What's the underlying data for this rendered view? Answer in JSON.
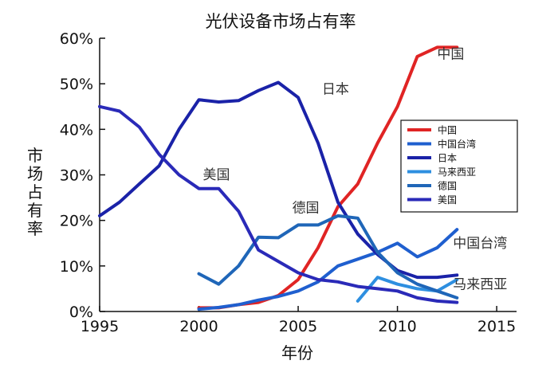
{
  "chart_data": {
    "type": "line",
    "title": "光伏设备市场占有率",
    "xlabel": "年份",
    "ylabel": "市场占有率",
    "xlim": [
      1995,
      2016
    ],
    "ylim": [
      0,
      60
    ],
    "xticks": [
      1995,
      2000,
      2005,
      2010,
      2015
    ],
    "yticks": [
      0,
      10,
      20,
      30,
      40,
      50,
      60
    ],
    "ytick_labels": [
      "0%",
      "10%",
      "20%",
      "30%",
      "40%",
      "50%",
      "60%"
    ],
    "grid": false,
    "legend_position": "right",
    "series": [
      {
        "name": "中国",
        "color": "#e02424",
        "points": [
          [
            2000,
            0.8
          ],
          [
            2001,
            0.8
          ],
          [
            2002,
            1.5
          ],
          [
            2003,
            2.0
          ],
          [
            2004,
            3.5
          ],
          [
            2005,
            7.0
          ],
          [
            2006,
            14.0
          ],
          [
            2007,
            23.0
          ],
          [
            2008,
            28.0
          ],
          [
            2009,
            37.0
          ],
          [
            2010,
            45.0
          ],
          [
            2011,
            56.0
          ],
          [
            2012,
            58.0
          ],
          [
            2013,
            58.0
          ]
        ]
      },
      {
        "name": "中国台湾",
        "color": "#1f5fcf",
        "points": [
          [
            2000,
            0.5
          ],
          [
            2001,
            0.9
          ],
          [
            2002,
            1.5
          ],
          [
            2003,
            2.5
          ],
          [
            2004,
            3.3
          ],
          [
            2005,
            4.5
          ],
          [
            2006,
            6.5
          ],
          [
            2007,
            10.0
          ],
          [
            2008,
            11.5
          ],
          [
            2009,
            13.0
          ],
          [
            2010,
            15.0
          ],
          [
            2011,
            12.0
          ],
          [
            2012,
            14.0
          ],
          [
            2013,
            18.0
          ]
        ]
      },
      {
        "name": "日本",
        "color": "#1a22a8",
        "points": [
          [
            1995,
            21.0
          ],
          [
            1996,
            24.0
          ],
          [
            1997,
            28.0
          ],
          [
            1998,
            32.0
          ],
          [
            1999,
            40.0
          ],
          [
            2000,
            46.5
          ],
          [
            2001,
            46.0
          ],
          [
            2002,
            46.3
          ],
          [
            2003,
            48.5
          ],
          [
            2004,
            50.3
          ],
          [
            2005,
            47.0
          ],
          [
            2006,
            37.0
          ],
          [
            2007,
            24.0
          ],
          [
            2008,
            17.0
          ],
          [
            2009,
            12.5
          ],
          [
            2010,
            9.0
          ],
          [
            2011,
            7.5
          ],
          [
            2012,
            7.5
          ],
          [
            2013,
            8.0
          ]
        ]
      },
      {
        "name": "马来西亚",
        "color": "#2e8fe0",
        "points": [
          [
            2008,
            2.3
          ],
          [
            2009,
            7.5
          ],
          [
            2010,
            6.0
          ],
          [
            2011,
            5.0
          ],
          [
            2012,
            4.5
          ],
          [
            2013,
            7.0
          ]
        ]
      },
      {
        "name": "德国",
        "color": "#1f66b8",
        "points": [
          [
            2000,
            8.3
          ],
          [
            2001,
            6.0
          ],
          [
            2002,
            10.0
          ],
          [
            2003,
            16.3
          ],
          [
            2004,
            16.2
          ],
          [
            2005,
            19.0
          ],
          [
            2006,
            19.0
          ],
          [
            2007,
            21.0
          ],
          [
            2008,
            20.5
          ],
          [
            2009,
            13.0
          ],
          [
            2010,
            8.5
          ],
          [
            2011,
            6.0
          ],
          [
            2012,
            4.5
          ],
          [
            2013,
            3.0
          ]
        ]
      },
      {
        "name": "美国",
        "color": "#2a2ab8",
        "points": [
          [
            1995,
            45.0
          ],
          [
            1996,
            44.0
          ],
          [
            1997,
            40.5
          ],
          [
            1998,
            34.5
          ],
          [
            1999,
            30.0
          ],
          [
            2000,
            27.0
          ],
          [
            2001,
            27.0
          ],
          [
            2002,
            22.0
          ],
          [
            2003,
            13.5
          ],
          [
            2004,
            11.0
          ],
          [
            2005,
            8.5
          ],
          [
            2006,
            7.0
          ],
          [
            2007,
            6.5
          ],
          [
            2008,
            5.5
          ],
          [
            2009,
            5.0
          ],
          [
            2010,
            4.5
          ],
          [
            2011,
            3.0
          ],
          [
            2012,
            2.3
          ],
          [
            2013,
            2.0
          ]
        ]
      }
    ],
    "annotations": [
      {
        "text": "中国",
        "x": 2012.0,
        "y": 55.5
      },
      {
        "text": "日本",
        "x": 2006.2,
        "y": 47.8
      },
      {
        "text": "美国",
        "x": 2000.2,
        "y": 29.0
      },
      {
        "text": "德国",
        "x": 2004.7,
        "y": 21.8
      },
      {
        "text": "中国台湾",
        "x": 2012.8,
        "y": 14.0
      },
      {
        "text": "马来西亚",
        "x": 2012.8,
        "y": 5.0
      }
    ]
  }
}
